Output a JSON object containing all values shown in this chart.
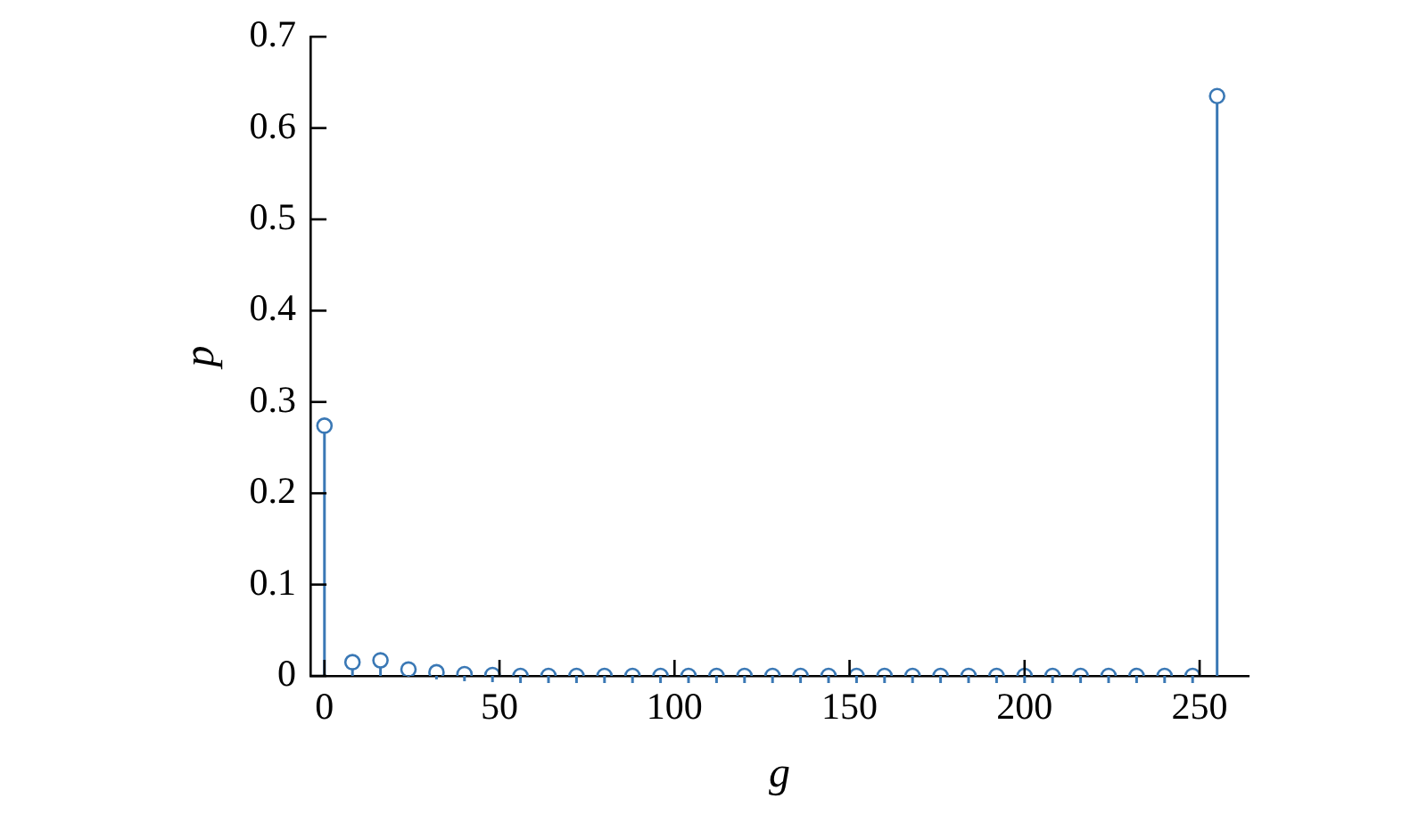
{
  "chart_data": {
    "type": "lollipop",
    "xlabel": "g",
    "ylabel": "p",
    "x": [
      0,
      8,
      16,
      24,
      32,
      40,
      48,
      56,
      64,
      72,
      80,
      88,
      96,
      104,
      112,
      120,
      128,
      136,
      144,
      152,
      160,
      168,
      176,
      184,
      192,
      200,
      208,
      216,
      224,
      232,
      240,
      248,
      255
    ],
    "series": [
      {
        "color": "#3a78b5",
        "values": [
          0.274,
          0.015,
          0.017,
          0.007,
          0.004,
          0.002,
          0.001,
          0,
          0,
          0,
          0,
          0,
          0,
          0,
          0,
          0,
          0,
          0,
          0,
          0,
          0,
          0,
          0,
          0,
          0,
          0,
          0,
          0,
          0,
          0,
          0,
          0,
          0.635
        ]
      }
    ],
    "xlim": [
      -4,
      264
    ],
    "xticks": [
      0,
      50,
      100,
      150,
      200,
      250
    ],
    "ylim": [
      0,
      0.7
    ],
    "yticks": [
      0,
      0.1,
      0.2,
      0.3,
      0.4,
      0.5,
      0.6,
      0.7
    ],
    "marker": "circle",
    "grid": false,
    "legend": false
  }
}
